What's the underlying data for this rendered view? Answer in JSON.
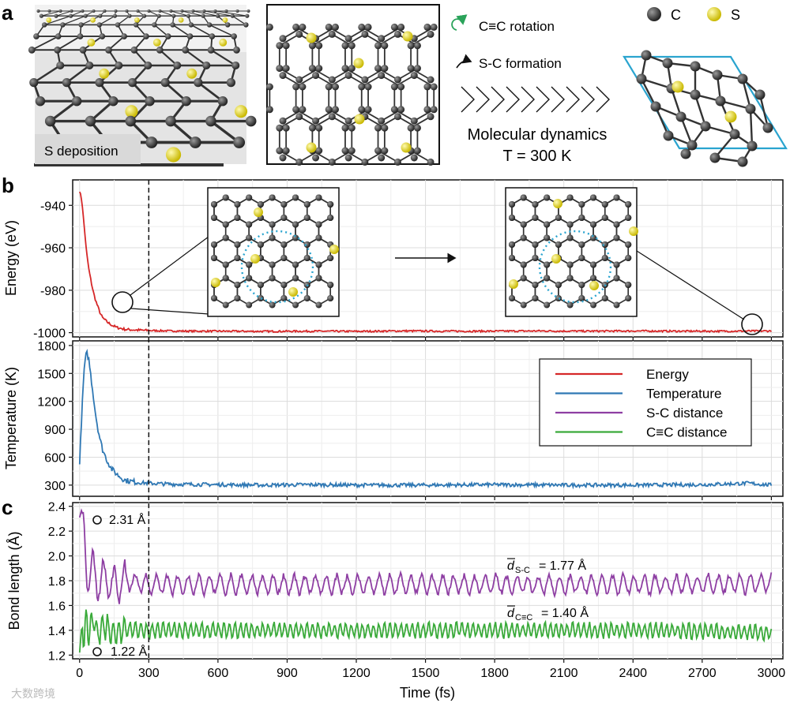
{
  "panel_letters": {
    "a": "a",
    "b": "b",
    "c": "c"
  },
  "panel_a": {
    "deposition_label": "S deposition",
    "rotation_label": "C≡C rotation",
    "formation_label": "S-C formation",
    "md_title": "Molecular dynamics",
    "md_temp": "T = 300 K",
    "legend_c": "C",
    "legend_s": "S"
  },
  "legend": [
    "Energy",
    "Temperature",
    "S-C distance",
    "C≡C distance"
  ],
  "annotations": {
    "sc_start": "2.31 Å",
    "cc_start": "1.22 Å",
    "sc_mean": "= 1.77 Å",
    "cc_mean": "= 1.40 Å",
    "sc_sub": "S-C",
    "cc_sub": "C≡C",
    "d_symbol": "d"
  },
  "watermark": "大数跨境",
  "colors": {
    "energy": "#d62728",
    "temperature": "#2f78b4",
    "sc": "#8e3fa3",
    "cc": "#3aaa3a",
    "carbon": "#3a3a3a",
    "sulfur": "#e8d400",
    "cell": "#2aa4cf"
  },
  "chart_data": [
    {
      "type": "line",
      "ylabel": "Energy (eV)",
      "xlim": [
        -30,
        3050
      ],
      "ylim": [
        -1002,
        -928
      ],
      "yticks": [
        -940,
        -960,
        -980,
        -1000
      ],
      "x": [
        0,
        10,
        20,
        30,
        40,
        50,
        60,
        70,
        80,
        90,
        100,
        120,
        140,
        160,
        180,
        200,
        250,
        300,
        400,
        500,
        600,
        800,
        1000,
        1200,
        1400,
        1600,
        1800,
        2000,
        2200,
        2400,
        2600,
        2800,
        3000
      ],
      "series": [
        {
          "name": "Energy",
          "values": [
            -933,
            -938,
            -950,
            -962,
            -970,
            -976,
            -981,
            -985,
            -988,
            -991,
            -993,
            -995,
            -996.5,
            -997.5,
            -998,
            -998.5,
            -998.8,
            -999,
            -999.2,
            -999.3,
            -999.3,
            -999.4,
            -999.3,
            -999.4,
            -999.2,
            -999.3,
            -999.3,
            -999.2,
            -999.3,
            -999.2,
            -999.3,
            -999.3,
            -999.2
          ]
        }
      ]
    },
    {
      "type": "line",
      "ylabel": "Temperature (K)",
      "xlim": [
        -30,
        3050
      ],
      "ylim": [
        180,
        1850
      ],
      "yticks": [
        1800,
        1500,
        1200,
        900,
        600,
        300
      ],
      "x": [
        0,
        10,
        20,
        30,
        40,
        50,
        60,
        70,
        80,
        90,
        100,
        120,
        140,
        160,
        180,
        200,
        250,
        300,
        400,
        600,
        800,
        1000,
        1200,
        1500,
        1800,
        2100,
        2400,
        2700,
        2900,
        3000
      ],
      "series": [
        {
          "name": "Temperature",
          "values": [
            520,
            1100,
            1550,
            1730,
            1650,
            1450,
            1250,
            1050,
            900,
            780,
            680,
            560,
            470,
            420,
            380,
            350,
            330,
            320,
            310,
            305,
            300,
            305,
            300,
            300,
            305,
            300,
            300,
            305,
            320,
            300
          ]
        }
      ]
    },
    {
      "type": "line",
      "xlabel": "Time (fs)",
      "ylabel": "Bond length (Å)",
      "xlim": [
        -30,
        3050
      ],
      "ylim": [
        1.17,
        2.43
      ],
      "yticks": [
        2.4,
        2.2,
        2.0,
        1.8,
        1.6,
        1.4,
        1.2
      ],
      "xticks": [
        0,
        300,
        600,
        900,
        1200,
        1500,
        1800,
        2100,
        2400,
        2700,
        3000
      ],
      "x": [
        0,
        10,
        20,
        30,
        40,
        60,
        80,
        100,
        150,
        200,
        300,
        500,
        1000,
        1500,
        2000,
        2500,
        3000
      ],
      "series": [
        {
          "name": "S-C distance",
          "values": [
            2.31,
            2.38,
            2.2,
            1.9,
            1.8,
            1.92,
            1.74,
            1.84,
            1.76,
            1.8,
            1.77,
            1.77,
            1.77,
            1.77,
            1.77,
            1.77,
            1.78
          ]
        },
        {
          "name": "C≡C distance",
          "values": [
            1.22,
            1.45,
            1.28,
            1.55,
            1.35,
            1.5,
            1.36,
            1.44,
            1.38,
            1.41,
            1.4,
            1.4,
            1.4,
            1.4,
            1.4,
            1.4,
            1.38
          ]
        }
      ]
    }
  ]
}
